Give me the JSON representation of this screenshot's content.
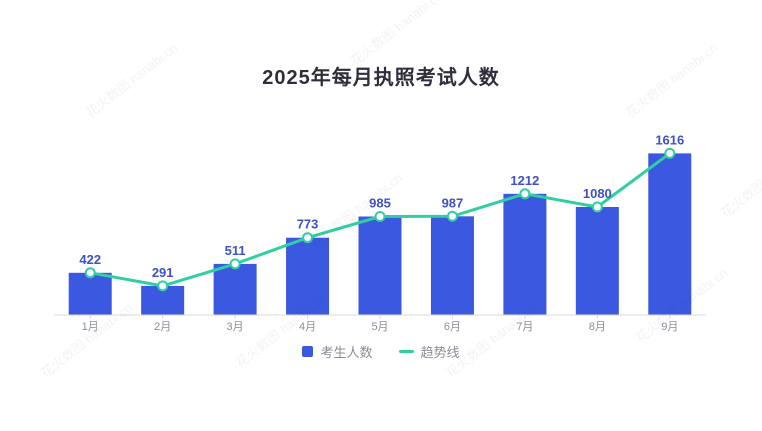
{
  "title": {
    "text": "2025年每月执照考试人数"
  },
  "watermark": {
    "text": "花火数图 hanabi.cn"
  },
  "legend": [
    {
      "label": "考生人数",
      "type": "bar"
    },
    {
      "label": "趋势线",
      "type": "line"
    }
  ],
  "colors": {
    "bar": "#3b58e0",
    "line": "#2fcfa2",
    "marker_fill": "#ffffff",
    "value_label": "#3f51c4",
    "axis_line": "#d8d8dd",
    "axis_label": "#8d8d98",
    "title": "#2f2f3b",
    "legend_text": "#8d8d98"
  },
  "chart_data": {
    "type": "bar",
    "title": "2025年每月执照考试人数",
    "categories": [
      "1月",
      "2月",
      "3月",
      "4月",
      "5月",
      "6月",
      "7月",
      "8月",
      "9月"
    ],
    "series": [
      {
        "name": "考生人数",
        "type": "bar",
        "color": "#3b58e0",
        "values": [
          422,
          291,
          511,
          773,
          985,
          987,
          1212,
          1080,
          1616
        ]
      },
      {
        "name": "趋势线",
        "type": "line",
        "color": "#2fcfa2",
        "values": [
          422,
          291,
          511,
          773,
          985,
          987,
          1212,
          1080,
          1616
        ]
      }
    ],
    "xlabel": "",
    "ylabel": "",
    "ylim": [
      0,
      1800
    ],
    "grid": false,
    "y_axis_visible": false,
    "value_labels": true,
    "legend_position": "bottom"
  }
}
